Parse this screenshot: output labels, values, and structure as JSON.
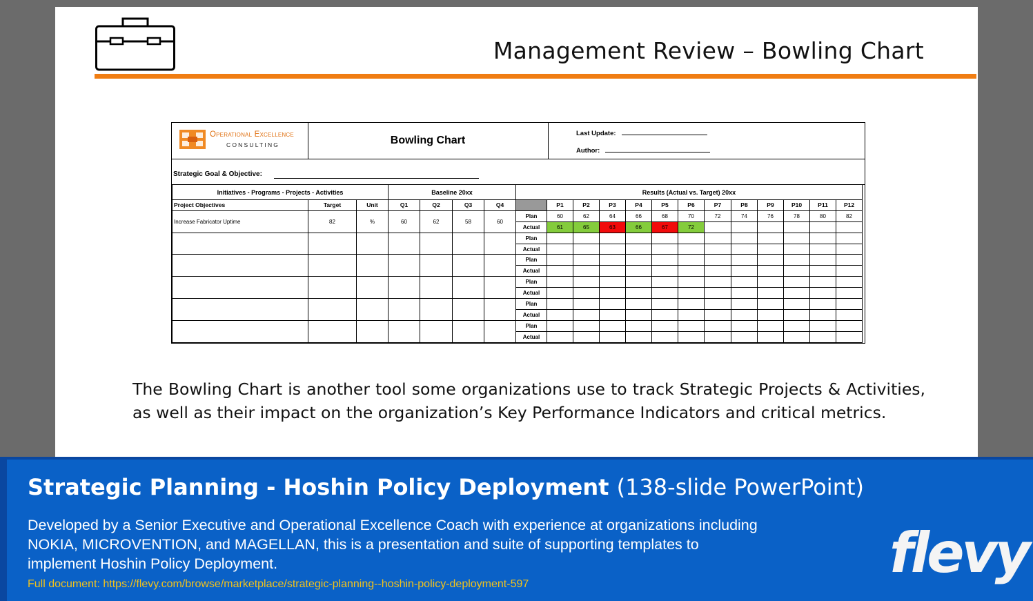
{
  "slide": {
    "title": "Management Review – Bowling Chart",
    "icon": "briefcase-icon",
    "accent_color": "#f07d12",
    "body_text": "The Bowling Chart is another tool some organizations use to track Strategic Projects & Activities, as well as their impact on the organization’s Key Performance Indicators and critical metrics."
  },
  "bowling_chart": {
    "logo": {
      "name": "Operational Excellence",
      "sub": "CONSULTING"
    },
    "title": "Bowling Chart",
    "last_update_label": "Last Update:",
    "author_label": "Author:",
    "goal_label": "Strategic Goal & Objective:",
    "sections": {
      "initiatives": "Initiatives - Programs - Projects - Activities",
      "baseline": "Baseline 20xx",
      "results": "Results (Actual vs. Target) 20xx"
    },
    "columns": {
      "objectives": "Project Objectives",
      "target": "Target",
      "unit": "Unit",
      "quarters": [
        "Q1",
        "Q2",
        "Q3",
        "Q4"
      ],
      "periods": [
        "P1",
        "P2",
        "P3",
        "P4",
        "P5",
        "P6",
        "P7",
        "P8",
        "P9",
        "P10",
        "P11",
        "P12"
      ]
    },
    "plan_label": "Plan",
    "actual_label": "Actual",
    "rows": [
      {
        "objective": "Increase Fabricator Uptime",
        "target": "82",
        "unit": "%",
        "baseline": [
          "60",
          "62",
          "58",
          "60"
        ],
        "plan": [
          "60",
          "62",
          "64",
          "66",
          "68",
          "70",
          "72",
          "74",
          "76",
          "78",
          "80",
          "82"
        ],
        "actual": [
          "61",
          "65",
          "63",
          "66",
          "67",
          "72",
          "",
          "",
          "",
          "",
          "",
          ""
        ],
        "actual_status": [
          "green",
          "green",
          "red",
          "green",
          "red",
          "green",
          "",
          "",
          "",
          "",
          "",
          ""
        ]
      },
      {
        "objective": "",
        "target": "",
        "unit": "",
        "baseline": [
          "",
          "",
          "",
          ""
        ],
        "plan": [
          "",
          "",
          "",
          "",
          "",
          "",
          "",
          "",
          "",
          "",
          "",
          ""
        ],
        "actual": [
          "",
          "",
          "",
          "",
          "",
          "",
          "",
          "",
          "",
          "",
          "",
          ""
        ],
        "actual_status": [
          "",
          "",
          "",
          "",
          "",
          "",
          "",
          "",
          "",
          "",
          "",
          ""
        ]
      },
      {
        "objective": "",
        "target": "",
        "unit": "",
        "baseline": [
          "",
          "",
          "",
          ""
        ],
        "plan": [
          "",
          "",
          "",
          "",
          "",
          "",
          "",
          "",
          "",
          "",
          "",
          ""
        ],
        "actual": [
          "",
          "",
          "",
          "",
          "",
          "",
          "",
          "",
          "",
          "",
          "",
          ""
        ],
        "actual_status": [
          "",
          "",
          "",
          "",
          "",
          "",
          "",
          "",
          "",
          "",
          "",
          ""
        ]
      },
      {
        "objective": "",
        "target": "",
        "unit": "",
        "baseline": [
          "",
          "",
          "",
          ""
        ],
        "plan": [
          "",
          "",
          "",
          "",
          "",
          "",
          "",
          "",
          "",
          "",
          "",
          ""
        ],
        "actual": [
          "",
          "",
          "",
          "",
          "",
          "",
          "",
          "",
          "",
          "",
          "",
          ""
        ],
        "actual_status": [
          "",
          "",
          "",
          "",
          "",
          "",
          "",
          "",
          "",
          "",
          "",
          ""
        ]
      },
      {
        "objective": "",
        "target": "",
        "unit": "",
        "baseline": [
          "",
          "",
          "",
          ""
        ],
        "plan": [
          "",
          "",
          "",
          "",
          "",
          "",
          "",
          "",
          "",
          "",
          "",
          ""
        ],
        "actual": [
          "",
          "",
          "",
          "",
          "",
          "",
          "",
          "",
          "",
          "",
          "",
          ""
        ],
        "actual_status": [
          "",
          "",
          "",
          "",
          "",
          "",
          "",
          "",
          "",
          "",
          "",
          ""
        ]
      },
      {
        "objective": "",
        "target": "",
        "unit": "",
        "baseline": [
          "",
          "",
          "",
          ""
        ],
        "plan": [
          "",
          "",
          "",
          "",
          "",
          "",
          "",
          "",
          "",
          "",
          "",
          ""
        ],
        "actual": [
          "",
          "",
          "",
          "",
          "",
          "",
          "",
          "",
          "",
          "",
          "",
          ""
        ],
        "actual_status": [
          "",
          "",
          "",
          "",
          "",
          "",
          "",
          "",
          "",
          "",
          "",
          ""
        ]
      }
    ],
    "status_colors": {
      "green": "#84cc3c",
      "red": "#f20b0b"
    }
  },
  "banner": {
    "title_bold": "Strategic Planning - Hoshin Policy Deployment",
    "title_light": "(138-slide PowerPoint)",
    "description": "Developed by a Senior Executive and Operational Excellence Coach with experience at organizations including NOKIA, MICROVENTION, and MAGELLAN, this is a presentation and suite of supporting templates to implement Hoshin Policy Deployment.",
    "link_text": "Full document: https://flevy.com/browse/marketplace/strategic-planning--hoshin-policy-deployment-597",
    "brand": "flevy",
    "background_color": "#0a61c7",
    "link_color": "#f2c21b"
  }
}
